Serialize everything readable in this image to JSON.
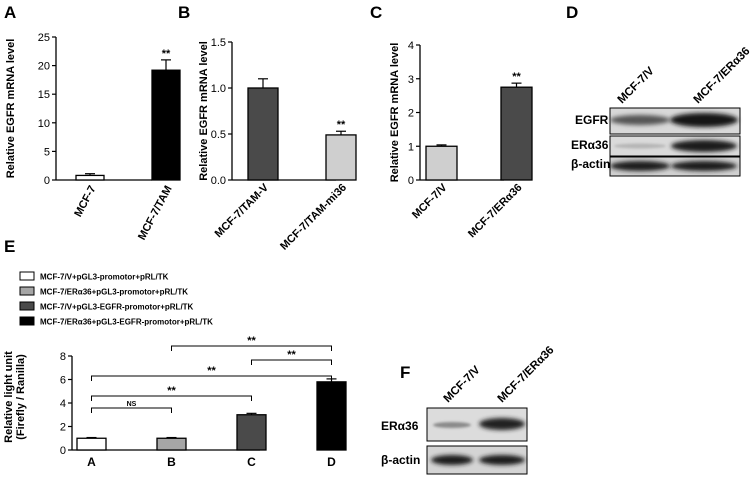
{
  "panels": {
    "A": "A",
    "B": "B",
    "C": "C",
    "D": "D",
    "E": "E",
    "F": "F"
  },
  "colors": {
    "white": "#ffffff",
    "light_gray": "#cfcfcf",
    "gray": "#a6a6a6",
    "dark_gray": "#4a4a4a",
    "black": "#000000"
  },
  "chart_data": [
    {
      "id": "A",
      "type": "bar",
      "ylabel": "Relative EGFR mRNA level",
      "ylim": [
        0,
        25
      ],
      "yticks": [
        0,
        5,
        10,
        15,
        20,
        25
      ],
      "ytick_labels": [
        "0",
        "5",
        "10",
        "15",
        "20",
        "25"
      ],
      "categories": [
        "MCF-7",
        "MCF-7/TAM"
      ],
      "values": [
        0.8,
        19.2
      ],
      "errors": [
        0.3,
        1.8
      ],
      "bar_colors": [
        "#ffffff",
        "#000000"
      ],
      "annotations": [
        {
          "category": "MCF-7/TAM",
          "text": "**"
        }
      ]
    },
    {
      "id": "B",
      "type": "bar",
      "ylabel": "Relative EGFR mRNA level",
      "ylim": [
        0,
        1.5
      ],
      "yticks": [
        0,
        0.5,
        1.0,
        1.5
      ],
      "ytick_labels": [
        "0.0",
        "0.5",
        "1.0",
        "1.5"
      ],
      "categories": [
        "MCF-7/TAM-V",
        "MCF-7/TAM-mi36"
      ],
      "values": [
        1.0,
        0.49
      ],
      "errors": [
        0.1,
        0.04
      ],
      "bar_colors": [
        "#4a4a4a",
        "#cfcfcf"
      ],
      "annotations": [
        {
          "category": "MCF-7/TAM-mi36",
          "text": "**"
        }
      ]
    },
    {
      "id": "C",
      "type": "bar",
      "ylabel": "Relative EGFR mRNA level",
      "ylim": [
        0,
        4
      ],
      "yticks": [
        0,
        1,
        2,
        3,
        4
      ],
      "ytick_labels": [
        "0",
        "1",
        "2",
        "3",
        "4"
      ],
      "categories": [
        "MCF-7/V",
        "MCF-7/ERα36"
      ],
      "values": [
        1.0,
        2.75
      ],
      "errors": [
        0.04,
        0.12
      ],
      "bar_colors": [
        "#cfcfcf",
        "#4a4a4a"
      ],
      "annotations": [
        {
          "category": "MCF-7/ERα36",
          "text": "**"
        }
      ]
    },
    {
      "id": "E",
      "type": "bar",
      "ylabel_lines": [
        "Relative light unit",
        "(Firefly / Ranilla)"
      ],
      "ylim": [
        0,
        8
      ],
      "yticks": [
        0,
        2,
        4,
        6,
        8
      ],
      "ytick_labels": [
        "0",
        "2",
        "4",
        "6",
        "8"
      ],
      "categories": [
        "A",
        "B",
        "C",
        "D"
      ],
      "values": [
        1.0,
        1.0,
        3.0,
        5.8
      ],
      "errors": [
        0.06,
        0.06,
        0.12,
        0.25
      ],
      "bar_colors": [
        "#ffffff",
        "#a6a6a6",
        "#4a4a4a",
        "#000000"
      ],
      "legend": [
        {
          "label": "MCF-7/V+pGL3-promotor+pRL/TK",
          "color": "#ffffff"
        },
        {
          "label": "MCF-7/ERα36+pGL3-promotor+pRL/TK",
          "color": "#a6a6a6"
        },
        {
          "label": "MCF-7/V+pGL3-EGFR-promotor+pRL/TK",
          "color": "#4a4a4a"
        },
        {
          "label": "MCF-7/ERα36+pGL3-EGFR-promotor+pRL/TK",
          "color": "#000000"
        }
      ],
      "legend_position": "top-left",
      "brackets": [
        {
          "from": "A",
          "to": "B",
          "text": "NS"
        },
        {
          "from": "A",
          "to": "C",
          "text": "**"
        },
        {
          "from": "A",
          "to": "D",
          "text": "**"
        },
        {
          "from": "C",
          "to": "D",
          "text": "**"
        },
        {
          "from": "B",
          "to": "D",
          "text": "**"
        }
      ]
    }
  ],
  "blots": {
    "D": {
      "columns": [
        "MCF-7/V",
        "MCF-7/ERα36"
      ],
      "rows": [
        "EGFR",
        "ERα36",
        "β-actin"
      ]
    },
    "F": {
      "columns": [
        "MCF-7/V",
        "MCF-7/ERα36"
      ],
      "rows": [
        "ERα36",
        "β-actin"
      ]
    }
  }
}
